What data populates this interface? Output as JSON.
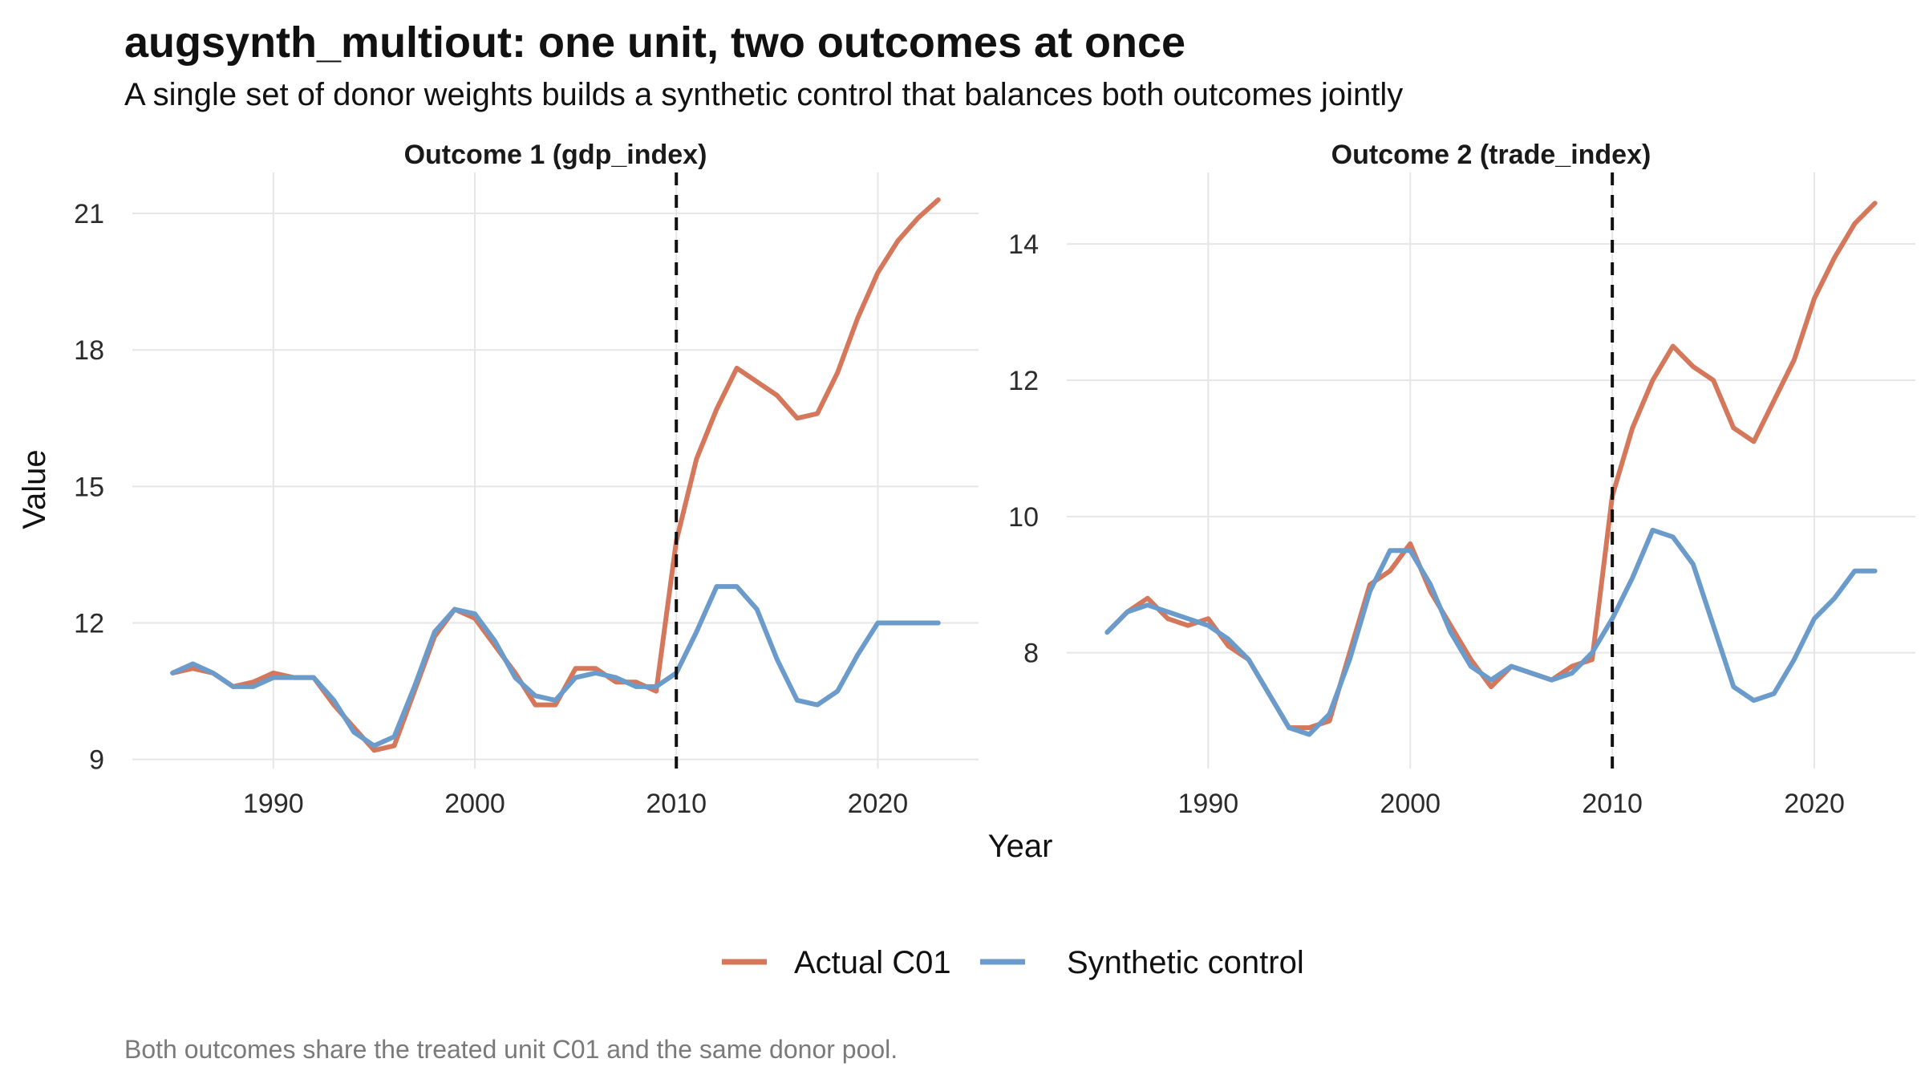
{
  "title": "augsynth_multiout: one unit, two outcomes at once",
  "subtitle": "A single set of donor weights builds a synthetic control that balances both outcomes jointly",
  "caption": "Both outcomes share the treated unit C01 and the same donor pool.",
  "colors": {
    "actual": "#D4775A",
    "synthetic": "#6B9BCB",
    "grid": "#E6E6E6",
    "treatment_line": "#111111"
  },
  "chart_data": [
    {
      "type": "line",
      "title": "Outcome 1 (gdp_index)",
      "xlabel": "Year",
      "ylabel": "Value",
      "xlim": [
        1983,
        2025
      ],
      "ylim": [
        8.8,
        21.9
      ],
      "xticks": [
        1990,
        2000,
        2010,
        2020
      ],
      "yticks": [
        9,
        12,
        15,
        18,
        21
      ],
      "treatment_year": 2010,
      "x": [
        1985,
        1986,
        1987,
        1988,
        1989,
        1990,
        1991,
        1992,
        1993,
        1994,
        1995,
        1996,
        1997,
        1998,
        1999,
        2000,
        2001,
        2002,
        2003,
        2004,
        2005,
        2006,
        2007,
        2008,
        2009,
        2010,
        2011,
        2012,
        2013,
        2014,
        2015,
        2016,
        2017,
        2018,
        2019,
        2020,
        2021,
        2022,
        2023
      ],
      "series": [
        {
          "name": "Actual C01",
          "values": [
            10.9,
            11.0,
            10.9,
            10.6,
            10.7,
            10.9,
            10.8,
            10.8,
            10.2,
            9.7,
            9.2,
            9.3,
            10.5,
            11.7,
            12.3,
            12.1,
            11.5,
            10.9,
            10.2,
            10.2,
            11.0,
            11.0,
            10.7,
            10.7,
            10.5,
            13.8,
            15.6,
            16.7,
            17.6,
            17.3,
            17.0,
            16.5,
            16.6,
            17.5,
            18.7,
            19.7,
            20.4,
            20.9,
            21.3
          ]
        },
        {
          "name": "Synthetic control",
          "values": [
            10.9,
            11.1,
            10.9,
            10.6,
            10.6,
            10.8,
            10.8,
            10.8,
            10.3,
            9.6,
            9.3,
            9.5,
            10.6,
            11.8,
            12.3,
            12.2,
            11.6,
            10.8,
            10.4,
            10.3,
            10.8,
            10.9,
            10.8,
            10.6,
            10.6,
            10.9,
            11.8,
            12.8,
            12.8,
            12.3,
            11.2,
            10.3,
            10.2,
            10.5,
            11.3,
            12.0,
            12.0,
            12.0,
            12.0
          ]
        }
      ]
    },
    {
      "type": "line",
      "title": "Outcome 2 (trade_index)",
      "xlabel": "Year",
      "ylabel": "Value",
      "xlim": [
        1983,
        2025
      ],
      "ylim": [
        6.3,
        15.05
      ],
      "xticks": [
        1990,
        2000,
        2010,
        2020
      ],
      "yticks": [
        8,
        10,
        12,
        14
      ],
      "treatment_year": 2010,
      "x": [
        1985,
        1986,
        1987,
        1988,
        1989,
        1990,
        1991,
        1992,
        1993,
        1994,
        1995,
        1996,
        1997,
        1998,
        1999,
        2000,
        2001,
        2002,
        2003,
        2004,
        2005,
        2006,
        2007,
        2008,
        2009,
        2010,
        2011,
        2012,
        2013,
        2014,
        2015,
        2016,
        2017,
        2018,
        2019,
        2020,
        2021,
        2022,
        2023
      ],
      "series": [
        {
          "name": "Actual C01",
          "values": [
            8.3,
            8.6,
            8.8,
            8.5,
            8.4,
            8.5,
            8.1,
            7.9,
            7.4,
            6.9,
            6.9,
            7.0,
            8.0,
            9.0,
            9.2,
            9.6,
            8.9,
            8.4,
            7.9,
            7.5,
            7.8,
            7.7,
            7.6,
            7.8,
            7.9,
            10.3,
            11.3,
            12.0,
            12.5,
            12.2,
            12.0,
            11.3,
            11.1,
            11.7,
            12.3,
            13.2,
            13.8,
            14.3,
            14.6
          ]
        },
        {
          "name": "Synthetic control",
          "values": [
            8.3,
            8.6,
            8.7,
            8.6,
            8.5,
            8.4,
            8.2,
            7.9,
            7.4,
            6.9,
            6.8,
            7.1,
            7.9,
            8.9,
            9.5,
            9.5,
            9.0,
            8.3,
            7.8,
            7.6,
            7.8,
            7.7,
            7.6,
            7.7,
            8.0,
            8.5,
            9.1,
            9.8,
            9.7,
            9.3,
            8.4,
            7.5,
            7.3,
            7.4,
            7.9,
            8.5,
            8.8,
            9.2,
            9.2
          ]
        }
      ]
    }
  ],
  "legend": {
    "position": "bottom",
    "items": [
      {
        "label": "Actual C01",
        "color": "#D4775A"
      },
      {
        "label": "Synthetic control",
        "color": "#6B9BCB"
      }
    ]
  }
}
